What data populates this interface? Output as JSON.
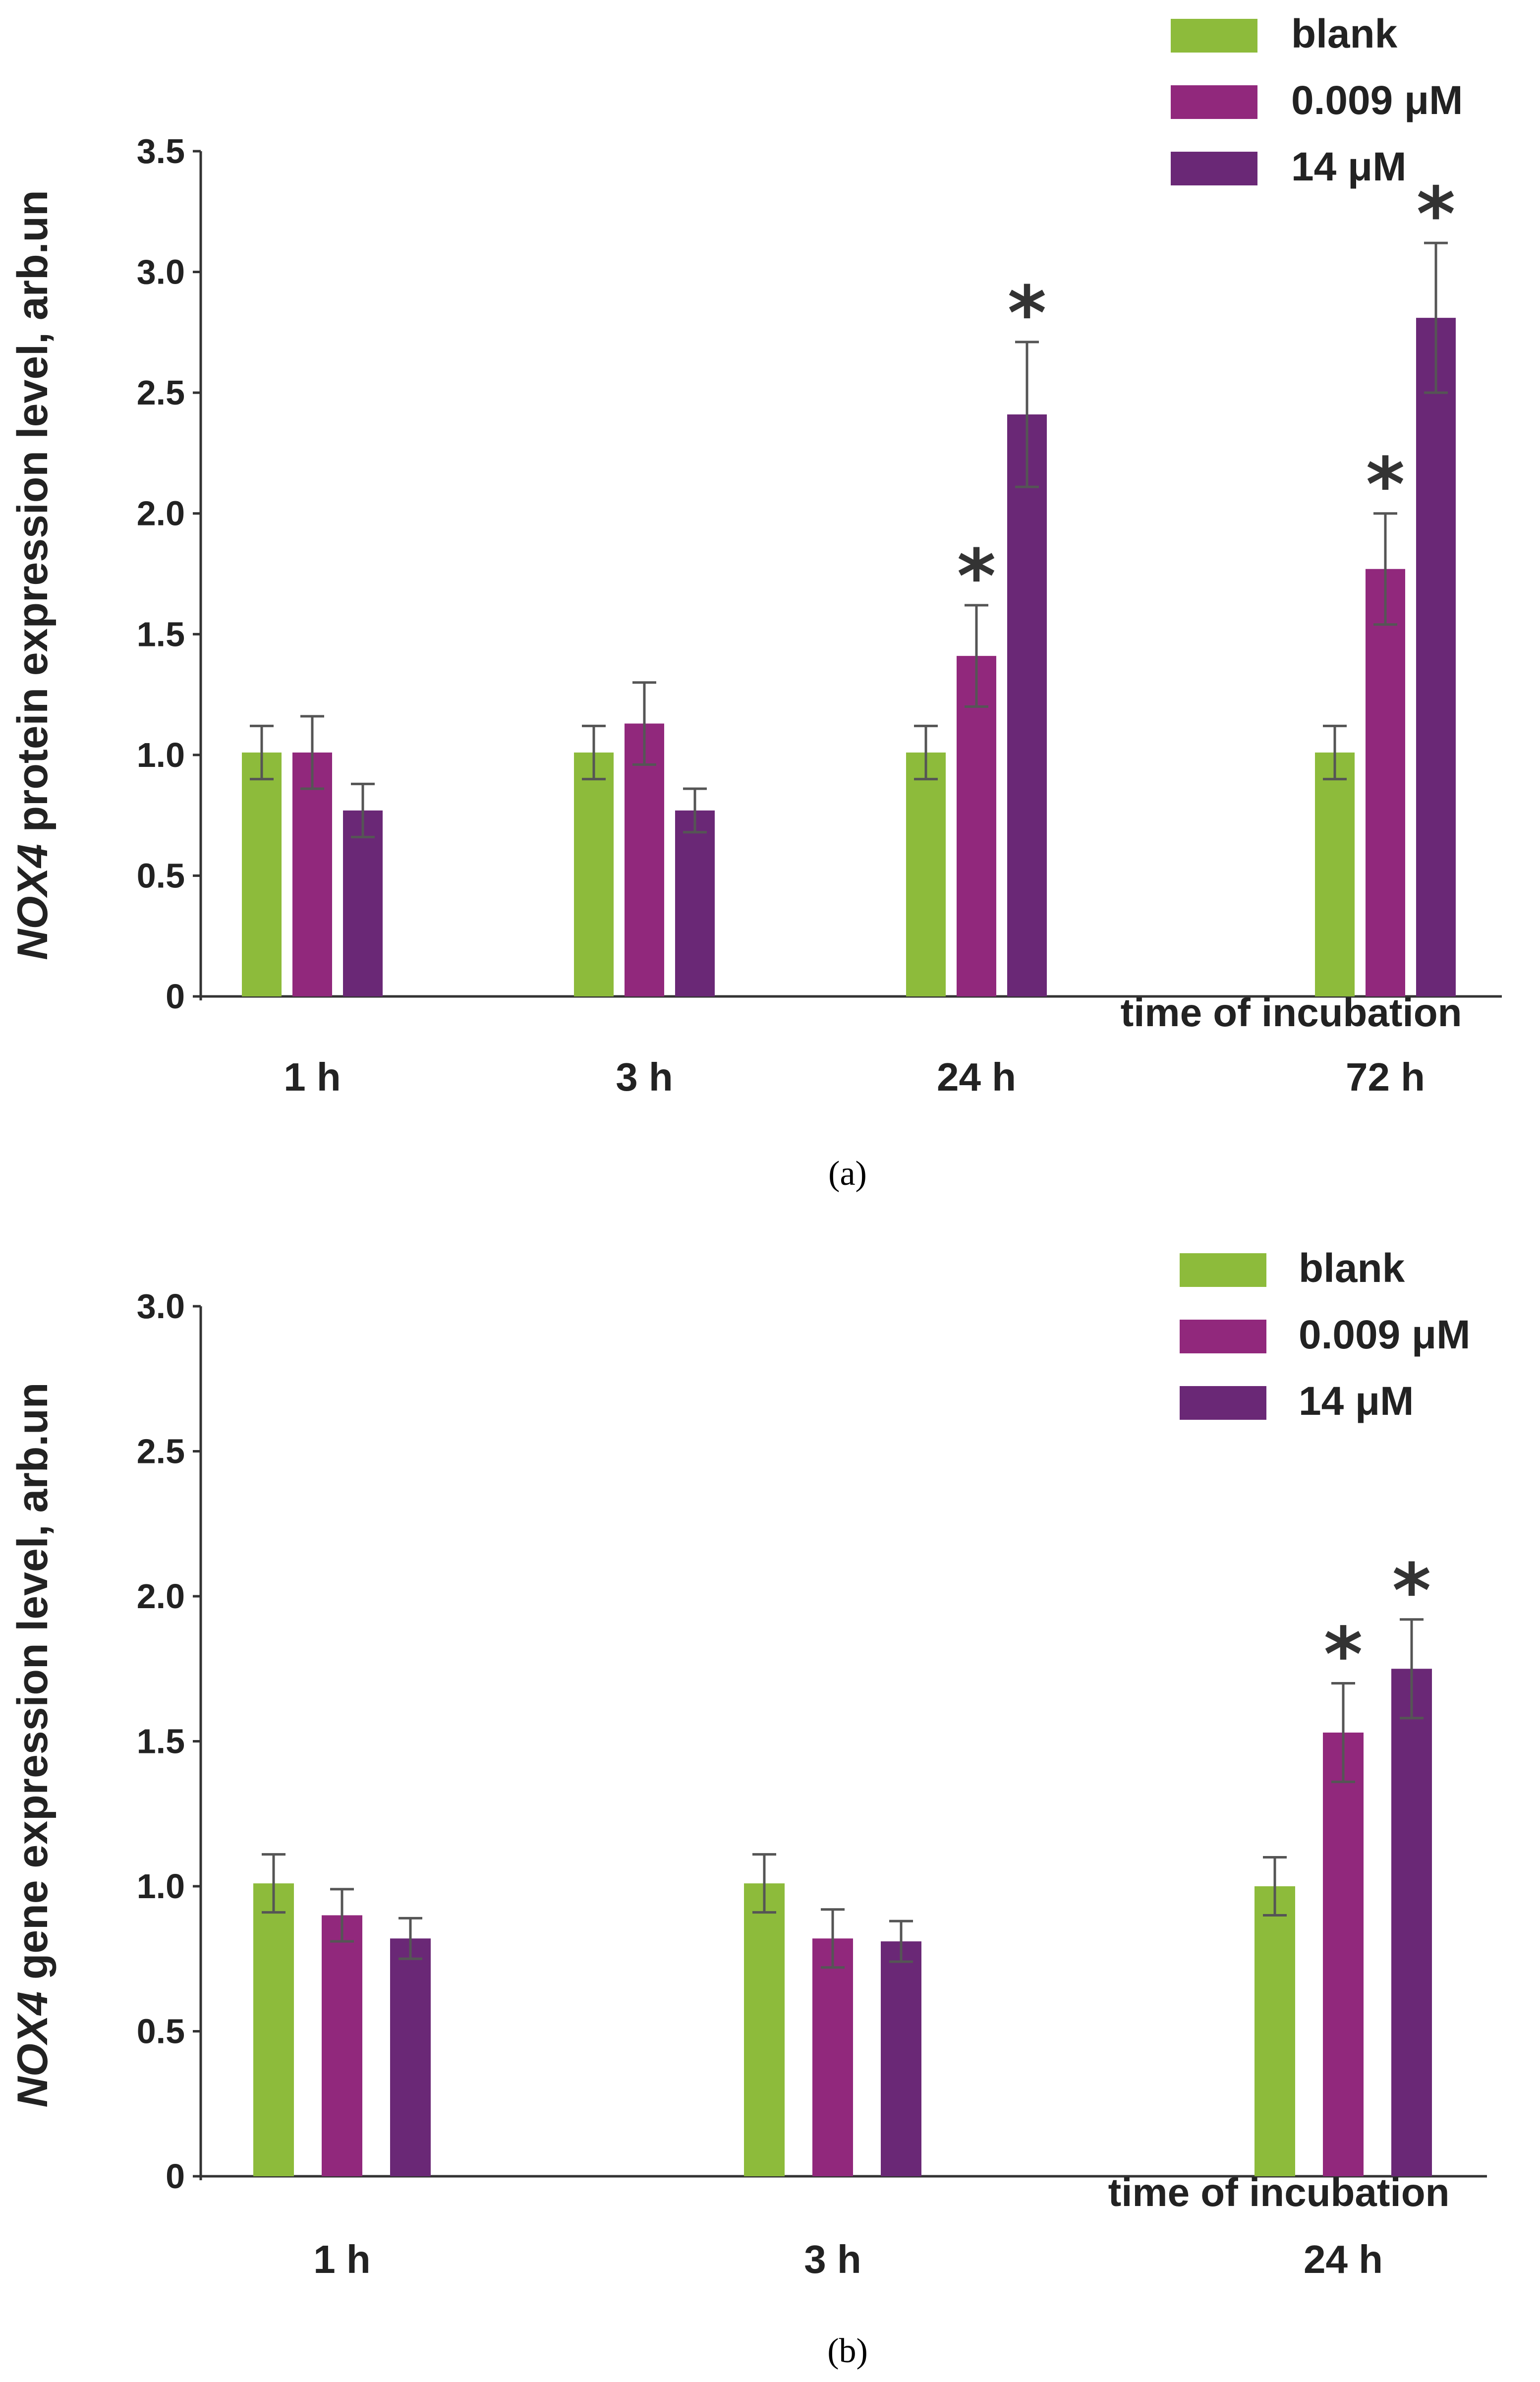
{
  "chart_data": [
    {
      "type": "bar",
      "panel_label": "(a)",
      "ylabel_gene": "NOX4",
      "ylabel_rest": " protein expression level, arb.un",
      "xlabel": "time of incubation",
      "categories": [
        "1 h",
        "3 h",
        "24 h",
        "72 h"
      ],
      "ylim": [
        0,
        3.5
      ],
      "yticks": [
        0,
        0.5,
        1.0,
        1.5,
        2.0,
        2.5,
        3.0,
        3.5
      ],
      "ytick_labels": [
        "0",
        "0.5",
        "1.0",
        "1.5",
        "2.0",
        "2.5",
        "3.0",
        "3.5"
      ],
      "legend_position": "top-right",
      "series": [
        {
          "name": "blank",
          "color": "#8dbb3b",
          "values": [
            1.01,
            1.01,
            1.01,
            1.01
          ],
          "errors": [
            0.11,
            0.11,
            0.11,
            0.11
          ],
          "significant": [
            false,
            false,
            false,
            false
          ]
        },
        {
          "name": "0.009 μM",
          "color": "#91287c",
          "values": [
            1.01,
            1.13,
            1.41,
            1.77
          ],
          "errors": [
            0.15,
            0.17,
            0.21,
            0.23
          ],
          "significant": [
            false,
            false,
            true,
            true
          ]
        },
        {
          "name": "14 μM",
          "color": "#6a2876",
          "values": [
            0.77,
            0.77,
            2.41,
            2.81
          ],
          "errors": [
            0.11,
            0.09,
            0.3,
            0.31
          ],
          "significant": [
            false,
            false,
            true,
            true
          ]
        }
      ],
      "significance_marker": "*"
    },
    {
      "type": "bar",
      "panel_label": "(b)",
      "ylabel_gene": "NOX4",
      "ylabel_rest": " gene expression level, arb.un",
      "xlabel": "time of incubation",
      "categories": [
        "1 h",
        "3 h",
        "24 h"
      ],
      "ylim": [
        0,
        3.0
      ],
      "yticks": [
        0,
        0.5,
        1.0,
        1.5,
        2.0,
        2.5,
        3.0
      ],
      "ytick_labels": [
        "0",
        "0.5",
        "1.0",
        "1.5",
        "2.0",
        "2.5",
        "3.0"
      ],
      "legend_position": "top-right",
      "series": [
        {
          "name": "blank",
          "color": "#8dbb3b",
          "values": [
            1.01,
            1.01,
            1.0
          ],
          "errors": [
            0.1,
            0.1,
            0.1
          ],
          "significant": [
            false,
            false,
            false
          ]
        },
        {
          "name": "0.009 μM",
          "color": "#91287c",
          "values": [
            0.9,
            0.82,
            1.53
          ],
          "errors": [
            0.09,
            0.1,
            0.17
          ],
          "significant": [
            false,
            false,
            true
          ]
        },
        {
          "name": "14 μM",
          "color": "#6a2876",
          "values": [
            0.82,
            0.81,
            1.75
          ],
          "errors": [
            0.07,
            0.07,
            0.17
          ],
          "significant": [
            false,
            false,
            true
          ]
        }
      ],
      "significance_marker": "*"
    }
  ]
}
